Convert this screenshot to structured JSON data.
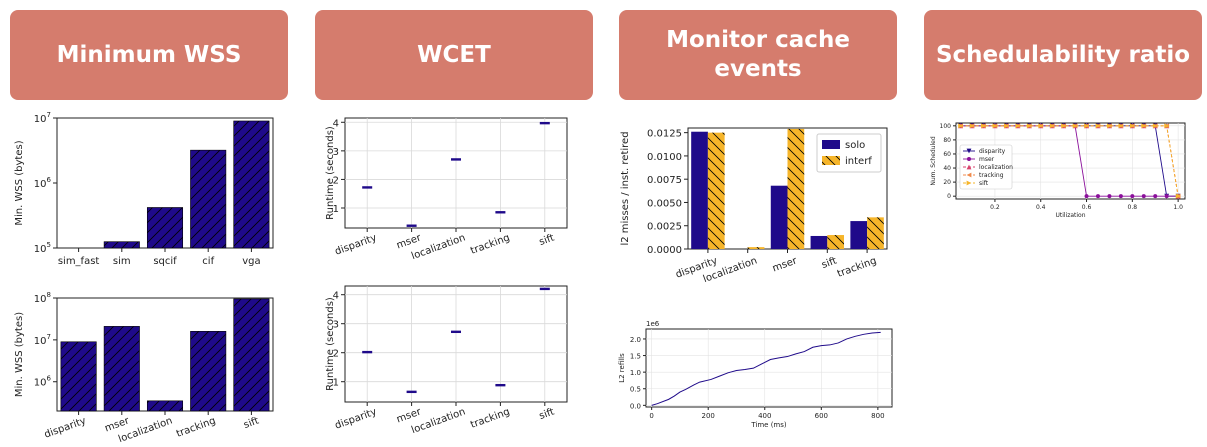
{
  "headers": [
    "Minimum WSS",
    "WCET",
    "Monitor cache events",
    "Schedulability ratio"
  ],
  "colors": {
    "header_bg": "#d57c6d",
    "bar": "#1f0a8a",
    "solo": "#1f0a8a",
    "interf": "#f6b52a"
  },
  "chart_data": [
    {
      "type": "bar",
      "scale": "log",
      "categories": [
        "sim_fast",
        "sim",
        "sqcif",
        "cif",
        "vga"
      ],
      "values": [
        100000,
        125000,
        420000,
        3200000,
        9000000
      ],
      "ylabel": "Min. WSS (bytes)",
      "ylim": [
        100000,
        10000000
      ],
      "yticks": [
        {
          "v": 100000,
          "b": "10",
          "e": "5"
        },
        {
          "v": 1000000,
          "b": "10",
          "e": "6"
        },
        {
          "v": 10000000,
          "b": "10",
          "e": "7"
        }
      ]
    },
    {
      "type": "bar",
      "scale": "log",
      "categories": [
        "disparity",
        "mser",
        "localization",
        "tracking",
        "sift"
      ],
      "values": [
        9000000,
        21000000,
        350000,
        16000000,
        95000000
      ],
      "ylabel": "Min. WSS (bytes)",
      "ylim": [
        200000,
        100000000
      ],
      "yticks": [
        {
          "v": 1000000,
          "b": "10",
          "e": "6"
        },
        {
          "v": 10000000,
          "b": "10",
          "e": "7"
        },
        {
          "v": 100000000,
          "b": "10",
          "e": "8"
        }
      ]
    },
    {
      "type": "box",
      "categories": [
        "disparity",
        "mser",
        "localization",
        "tracking",
        "sift"
      ],
      "values": [
        1.72,
        0.38,
        2.7,
        0.85,
        3.97
      ],
      "ylabel": "Runtime (seconds)",
      "ylim": [
        0.3,
        4.15
      ],
      "yticks": [
        {
          "v": 1,
          "l": "1"
        },
        {
          "v": 2,
          "l": "2"
        },
        {
          "v": 3,
          "l": "3"
        },
        {
          "v": 4,
          "l": "4"
        }
      ]
    },
    {
      "type": "box",
      "categories": [
        "disparity",
        "mser",
        "localization",
        "tracking",
        "sift"
      ],
      "values": [
        2.02,
        0.65,
        2.72,
        0.88,
        4.2
      ],
      "ylabel": "Runtime (seconds)",
      "ylim": [
        0.3,
        4.3
      ],
      "yticks": [
        {
          "v": 1,
          "l": "1"
        },
        {
          "v": 2,
          "l": "2"
        },
        {
          "v": 3,
          "l": "3"
        },
        {
          "v": 4,
          "l": "4"
        }
      ]
    },
    {
      "type": "bar",
      "categories": [
        "disparity",
        "localization",
        "mser",
        "sift",
        "tracking"
      ],
      "series": [
        {
          "name": "solo",
          "values": [
            0.0126,
            0.0,
            0.0068,
            0.0014,
            0.003
          ]
        },
        {
          "name": "interf",
          "values": [
            0.0125,
            0.0002,
            0.0129,
            0.0015,
            0.0034
          ]
        }
      ],
      "ylabel": "l2 misses / inst. retired",
      "ylim": [
        0,
        0.013
      ],
      "legend": "top-right",
      "yticks": [
        {
          "v": 0,
          "l": "0.0000"
        },
        {
          "v": 0.0025,
          "l": "0.0025"
        },
        {
          "v": 0.005,
          "l": "0.0050"
        },
        {
          "v": 0.0075,
          "l": "0.0075"
        },
        {
          "v": 0.01,
          "l": "0.0100"
        },
        {
          "v": 0.0125,
          "l": "0.0125"
        }
      ]
    },
    {
      "type": "line",
      "x": [
        0,
        20,
        60,
        80,
        100,
        120,
        150,
        170,
        210,
        240,
        270,
        300,
        330,
        360,
        390,
        420,
        450,
        480,
        510,
        540,
        570,
        600,
        630,
        660,
        690,
        720,
        750,
        780,
        810
      ],
      "y": [
        0.0,
        0.05,
        0.18,
        0.28,
        0.4,
        0.48,
        0.62,
        0.7,
        0.78,
        0.88,
        0.98,
        1.05,
        1.08,
        1.12,
        1.25,
        1.38,
        1.43,
        1.47,
        1.55,
        1.62,
        1.75,
        1.8,
        1.82,
        1.88,
        2.0,
        2.08,
        2.14,
        2.18,
        2.2
      ],
      "xlabel": "Time (ms)",
      "ylabel": "L2 refills",
      "xlim": [
        -20,
        850
      ],
      "ylim": [
        -0.05,
        2.3
      ],
      "scale_note": "1e6",
      "xticks": [
        {
          "v": 0,
          "l": "0"
        },
        {
          "v": 200,
          "l": "200"
        },
        {
          "v": 400,
          "l": "400"
        },
        {
          "v": 600,
          "l": "600"
        },
        {
          "v": 800,
          "l": "800"
        }
      ],
      "yticks": [
        {
          "v": 0,
          "l": "0.0"
        },
        {
          "v": 0.5,
          "l": "0.5"
        },
        {
          "v": 1,
          "l": "1.0"
        },
        {
          "v": 1.5,
          "l": "1.5"
        },
        {
          "v": 2,
          "l": "2.0"
        }
      ]
    },
    {
      "type": "line",
      "x": [
        0.05,
        0.1,
        0.15,
        0.2,
        0.25,
        0.3,
        0.35,
        0.4,
        0.45,
        0.5,
        0.55,
        0.6,
        0.65,
        0.7,
        0.75,
        0.8,
        0.85,
        0.9,
        0.95,
        1.0
      ],
      "series": [
        {
          "name": "disparity",
          "marker": "v",
          "color": "#1f0a8a",
          "y": [
            100,
            100,
            100,
            100,
            100,
            100,
            100,
            100,
            100,
            100,
            100,
            100,
            100,
            100,
            100,
            100,
            100,
            100,
            0,
            0
          ]
        },
        {
          "name": "mser",
          "marker": "o",
          "color": "#8a0f9a",
          "y": [
            100,
            100,
            100,
            100,
            100,
            100,
            100,
            100,
            100,
            100,
            100,
            0,
            0,
            0,
            0,
            0,
            0,
            0,
            0,
            0
          ]
        },
        {
          "name": "localization",
          "marker": "^",
          "color": "#d8426c",
          "y": [
            100,
            100,
            100,
            100,
            100,
            100,
            100,
            100,
            100,
            100,
            100,
            100,
            100,
            100,
            100,
            100,
            100,
            100,
            100,
            0
          ]
        },
        {
          "name": "tracking",
          "marker": "<",
          "color": "#f08a4b",
          "y": [
            100,
            100,
            100,
            100,
            100,
            100,
            100,
            100,
            100,
            100,
            100,
            100,
            100,
            100,
            100,
            100,
            100,
            100,
            100,
            0
          ]
        },
        {
          "name": "sift",
          "marker": ">",
          "color": "#f6b52a",
          "y": [
            100,
            100,
            100,
            100,
            100,
            100,
            100,
            100,
            100,
            100,
            100,
            100,
            100,
            100,
            100,
            100,
            100,
            100,
            100,
            0
          ]
        }
      ],
      "xlabel": "Utilization",
      "ylabel": "Num. Scheduled",
      "xlim": [
        0.03,
        1.03
      ],
      "ylim": [
        -4,
        104
      ],
      "legend": "center-left",
      "xticks": [
        {
          "v": 0.2,
          "l": "0.2"
        },
        {
          "v": 0.4,
          "l": "0.4"
        },
        {
          "v": 0.6,
          "l": "0.6"
        },
        {
          "v": 0.8,
          "l": "0.8"
        },
        {
          "v": 1.0,
          "l": "1.0"
        }
      ],
      "yticks": [
        {
          "v": 0,
          "l": "0"
        },
        {
          "v": 20,
          "l": "20"
        },
        {
          "v": 40,
          "l": "40"
        },
        {
          "v": 60,
          "l": "60"
        },
        {
          "v": 80,
          "l": "80"
        },
        {
          "v": 100,
          "l": "100"
        }
      ]
    }
  ]
}
